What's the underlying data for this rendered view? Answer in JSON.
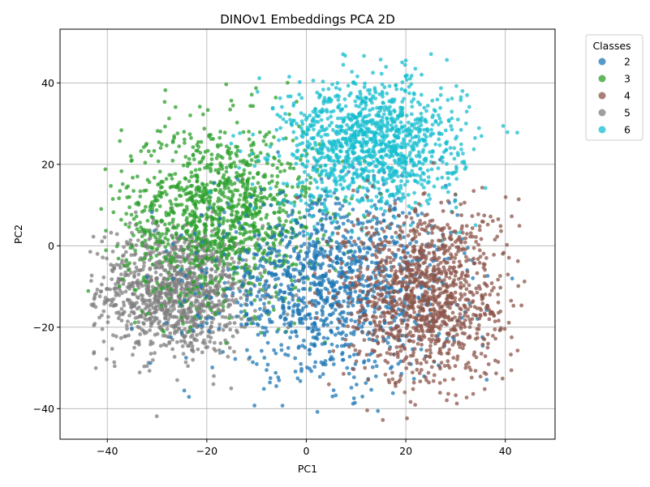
{
  "chart_data": {
    "type": "scatter",
    "title": "DINOv1 Embeddings PCA 2D",
    "xlabel": "PC1",
    "ylabel": "PC2",
    "xlim": [
      -49.5,
      50
    ],
    "ylim": [
      -47.5,
      53.2
    ],
    "xticks": [
      -40,
      -20,
      0,
      20,
      40
    ],
    "yticks": [
      -40,
      -20,
      0,
      20,
      40
    ],
    "xtick_labels": [
      "−40",
      "−20",
      "0",
      "20",
      "40"
    ],
    "ytick_labels": [
      "−40",
      "−20",
      "0",
      "20",
      "40"
    ],
    "grid": true,
    "legend": {
      "title": "Classes",
      "placement": "outside-top-right",
      "entries": [
        "2",
        "3",
        "4",
        "5",
        "6"
      ]
    },
    "series": [
      {
        "name": "2",
        "color": "#1f77b4",
        "cluster": {
          "cx": 5,
          "cy": -10,
          "sx": 12,
          "sy": 11
        }
      },
      {
        "name": "3",
        "color": "#2ca02c",
        "cluster": {
          "cx": -17,
          "cy": 8,
          "sx": 10,
          "sy": 11
        }
      },
      {
        "name": "4",
        "color": "#8c564b",
        "cluster": {
          "cx": 24,
          "cy": -12,
          "sx": 8,
          "sy": 11
        }
      },
      {
        "name": "5",
        "color": "#7f7f7f",
        "cluster": {
          "cx": -26,
          "cy": -11,
          "sx": 8,
          "sy": 8
        }
      },
      {
        "name": "6",
        "color": "#17becf",
        "cluster": {
          "cx": 13,
          "cy": 25,
          "sx": 9,
          "sy": 8
        }
      }
    ]
  }
}
